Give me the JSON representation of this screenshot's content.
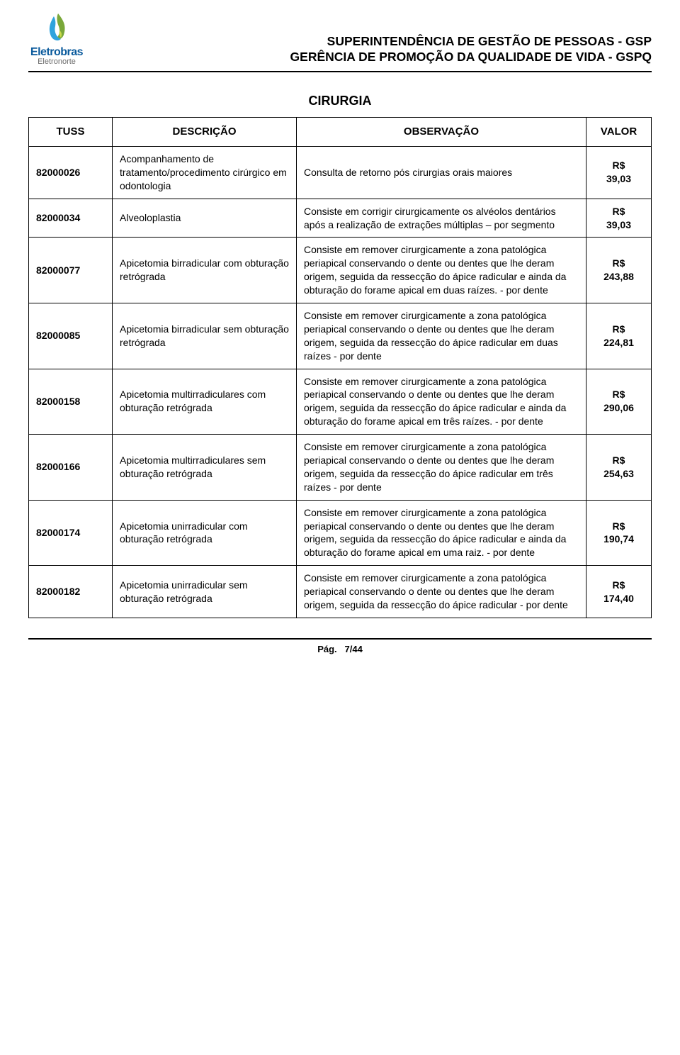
{
  "logo": {
    "brand": "Eletrobras",
    "sub": "Eletronorte",
    "flame_colors": {
      "front": "#2ea3dd",
      "back": "#7aa83a",
      "accent": "#c9d94a"
    }
  },
  "header": {
    "line1": "SUPERINTENDÊNCIA DE GESTÃO DE PESSOAS  -  GSP",
    "line2": "GERÊNCIA DE PROMOÇÃO DA QUALIDADE DE VIDA - GSPQ"
  },
  "section_title": "CIRURGIA",
  "columns": {
    "tuss": "TUSS",
    "descricao": "DESCRIÇÃO",
    "observacao": "OBSERVAÇÃO",
    "valor": "VALOR"
  },
  "currency": "R$",
  "rows": [
    {
      "tuss": "82000026",
      "descricao": "Acompanhamento de tratamento/procedimento cirúrgico em odontologia",
      "observacao": "Consulta de retorno pós cirurgias orais maiores",
      "valor": "39,03"
    },
    {
      "tuss": "82000034",
      "descricao": "Alveoloplastia",
      "observacao": "Consiste em corrigir cirurgicamente os alvéolos dentários após a realização de extrações múltiplas – por segmento",
      "valor": "39,03"
    },
    {
      "tuss": "82000077",
      "descricao": "Apicetomia birradicular com obturação retrógrada",
      "observacao": "Consiste em remover cirurgicamente a zona patológica periapical conservando o dente ou dentes que lhe deram origem, seguida da ressecção do ápice radicular e ainda da obturação do forame apical em duas raízes. - por dente",
      "valor": "243,88"
    },
    {
      "tuss": "82000085",
      "descricao": "Apicetomia birradicular sem obturação retrógrada",
      "observacao": "Consiste em remover cirurgicamente a zona patológica periapical conservando o dente ou dentes que lhe deram origem, seguida da ressecção do ápice radicular em duas raízes - por dente",
      "valor": "224,81"
    },
    {
      "tuss": "82000158",
      "descricao": "Apicetomia multirradiculares com obturação retrógrada",
      "observacao": "Consiste em remover cirurgicamente a zona patológica periapical conservando o dente ou dentes que lhe deram origem, seguida da ressecção do ápice radicular e ainda da obturação do forame apical em três raízes. - por dente",
      "valor": "290,06"
    },
    {
      "tuss": "82000166",
      "descricao": "Apicetomia multirradiculares sem obturação retrógrada",
      "observacao": "Consiste em remover cirurgicamente a zona patológica periapical conservando o dente ou dentes que lhe deram origem, seguida da ressecção do ápice radicular em três raízes - por dente",
      "valor": "254,63"
    },
    {
      "tuss": "82000174",
      "descricao": "Apicetomia unirradicular com obturação retrógrada",
      "observacao": "Consiste em remover cirurgicamente a zona patológica periapical conservando o dente ou dentes que lhe deram origem, seguida da ressecção do ápice radicular e ainda da obturação do forame apical em uma raiz. - por dente",
      "valor": "190,74"
    },
    {
      "tuss": "82000182",
      "descricao": "Apicetomia unirradicular sem obturação retrógrada",
      "observacao": "Consiste em remover cirurgicamente a zona patológica periapical conservando o dente ou dentes que lhe deram origem, seguida da ressecção do ápice radicular - por dente",
      "valor": "174,40"
    }
  ],
  "footer": {
    "label": "Pág.",
    "page": "7/44"
  }
}
